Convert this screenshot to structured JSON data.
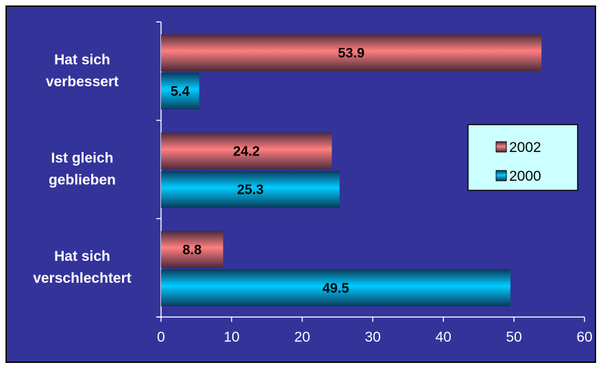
{
  "chart_data": {
    "type": "bar",
    "orientation": "horizontal",
    "categories": [
      [
        "Hat sich",
        "verbessert"
      ],
      [
        "Ist gleich",
        "geblieben"
      ],
      [
        "Hat sich",
        "verschlechtert"
      ]
    ],
    "series": [
      {
        "name": "2002",
        "values": [
          53.9,
          24.2,
          8.8
        ],
        "color": "#ff7f7f",
        "shade": "#4a2a3a"
      },
      {
        "name": "2000",
        "values": [
          5.4,
          25.3,
          49.5
        ],
        "color": "#00ccff",
        "shade": "#0a3a5a"
      }
    ],
    "data_labels": [
      [
        "53.9",
        "24.2",
        "8.8"
      ],
      [
        "5.4",
        "25.3",
        "49.5"
      ]
    ],
    "xlim": [
      0,
      60
    ],
    "xticks": [
      "0",
      "10",
      "20",
      "30",
      "40",
      "50",
      "60"
    ],
    "grid": false,
    "legend_position": "right",
    "background_color": "#33339a",
    "legend_background": "#ccffff"
  }
}
